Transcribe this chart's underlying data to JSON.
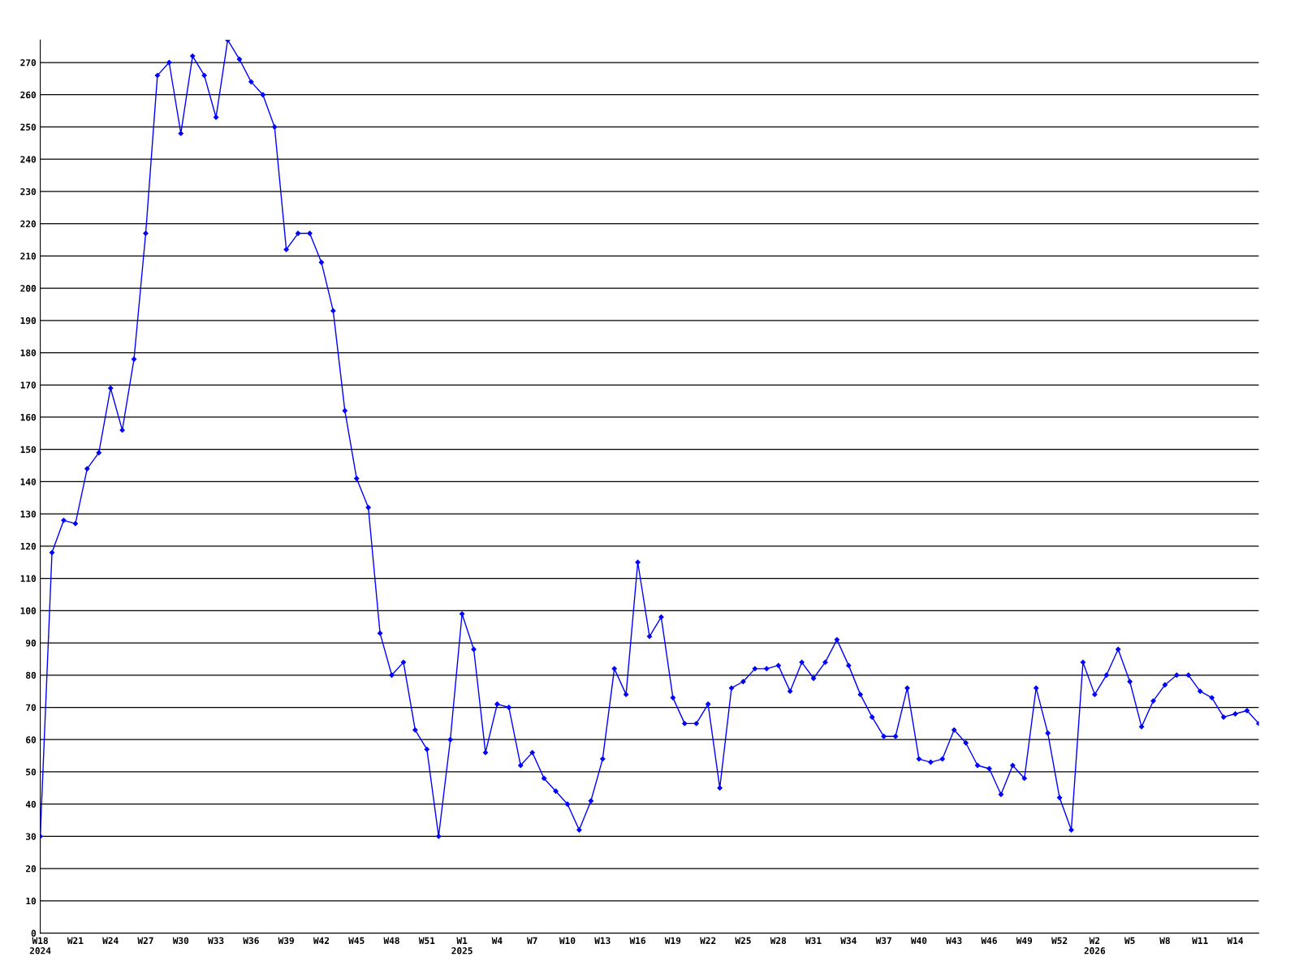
{
  "chart_data": {
    "type": "line",
    "categories": [
      "W18\n2024",
      null,
      null,
      "W21",
      null,
      null,
      "W24",
      null,
      null,
      "W27",
      null,
      null,
      "W30",
      null,
      null,
      "W33",
      null,
      null,
      "W36",
      null,
      null,
      "W39",
      null,
      null,
      "W42",
      null,
      null,
      "W45",
      null,
      null,
      "W48",
      null,
      null,
      "W51",
      null,
      null,
      "W1\n2025",
      null,
      null,
      "W4",
      null,
      null,
      "W7",
      null,
      null,
      "W10",
      null,
      null,
      "W13",
      null,
      null,
      "W16",
      null,
      null,
      "W19",
      null,
      null,
      "W22",
      null,
      null,
      "W25",
      null,
      null,
      "W28",
      null,
      null,
      "W31",
      null,
      null,
      "W34",
      null,
      null,
      "W37",
      null,
      null,
      "W40",
      null,
      null,
      "W43",
      null,
      null,
      "W46",
      null,
      null,
      "W49",
      null,
      null,
      "W52",
      null,
      null,
      "W2\n2026",
      null,
      null,
      "W5",
      null,
      null,
      "W8",
      null,
      null,
      "W11",
      null,
      null,
      "W14",
      null,
      null
    ],
    "series": [
      {
        "color": "#0000ff",
        "values": [
          30,
          118,
          128,
          127,
          144,
          149,
          169,
          156,
          178,
          217,
          266,
          270,
          248,
          272,
          266,
          253,
          277,
          271,
          264,
          260,
          250,
          212,
          217,
          217,
          208,
          193,
          162,
          141,
          132,
          93,
          80,
          84,
          63,
          57,
          30,
          60,
          99,
          88,
          56,
          71,
          70,
          52,
          56,
          48,
          44,
          40,
          32,
          41,
          54,
          82,
          74,
          115,
          92,
          98,
          73,
          65,
          65,
          71,
          45,
          76,
          78,
          82,
          82,
          83,
          75,
          84,
          79,
          84,
          91,
          83,
          74,
          67,
          61,
          61,
          76,
          54,
          53,
          54,
          63,
          59,
          52,
          51,
          43,
          52,
          48,
          76,
          62,
          42,
          32,
          84,
          74,
          80,
          88,
          78,
          64,
          72,
          77,
          80,
          80,
          75,
          73,
          67,
          68,
          69,
          65
        ]
      }
    ],
    "ylim": [
      0,
      277
    ],
    "yticks": [
      0,
      10,
      20,
      30,
      40,
      50,
      60,
      70,
      80,
      90,
      100,
      110,
      120,
      130,
      140,
      150,
      160,
      170,
      180,
      190,
      200,
      210,
      220,
      230,
      240,
      250,
      260,
      270
    ],
    "grid": "y",
    "legend": false,
    "marker": "diamond",
    "line_style": "solid"
  }
}
